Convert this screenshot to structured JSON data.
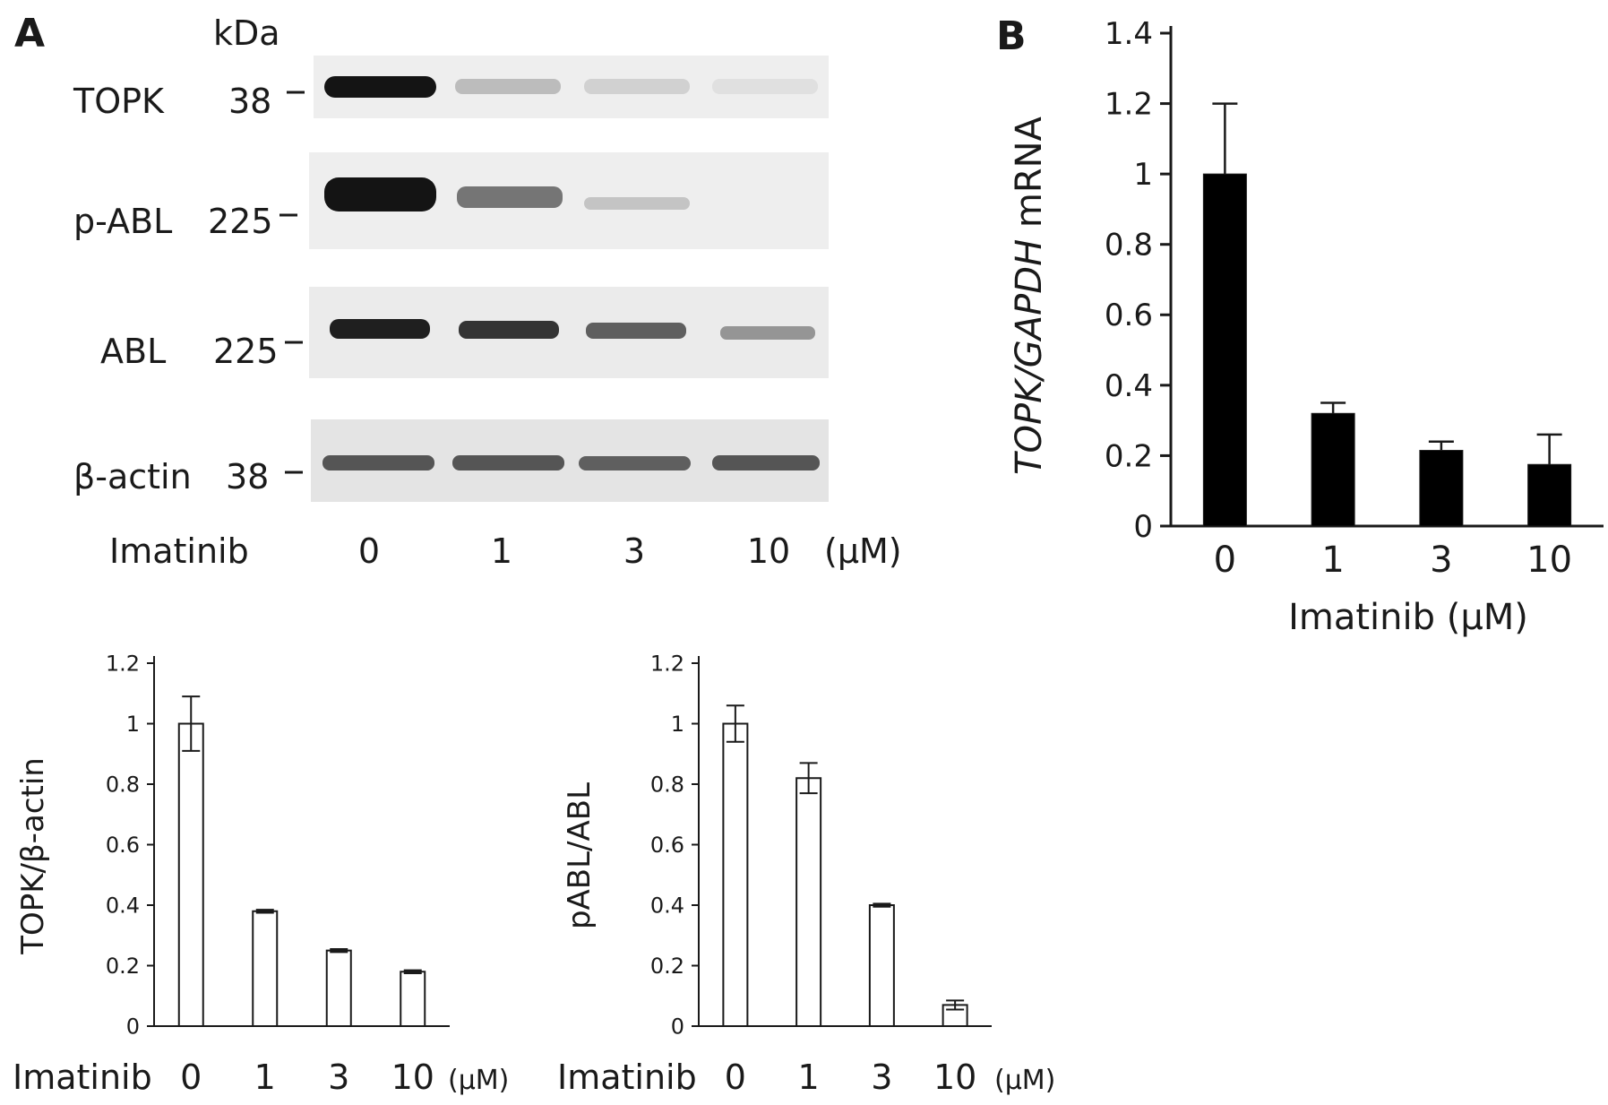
{
  "panel_a": {
    "label": "A",
    "kda_label": "kDa",
    "blot_rows": [
      {
        "protein": "TOPK",
        "kda": "38",
        "intensities": [
          1.0,
          0.22,
          0.12,
          0.05
        ]
      },
      {
        "protein": "p-ABL",
        "kda": "225",
        "intensities": [
          1.0,
          0.55,
          0.18,
          0.0
        ]
      },
      {
        "protein": "ABL",
        "kda": "225",
        "intensities": [
          0.95,
          0.85,
          0.65,
          0.4
        ]
      },
      {
        "protein": "β-actin",
        "kda": "38",
        "intensities": [
          0.7,
          0.7,
          0.65,
          0.7
        ]
      }
    ],
    "lane_header": "Imatinib",
    "lanes": [
      "0",
      "1",
      "3",
      "10"
    ],
    "unit": "(μM)"
  },
  "panel_b": {
    "label": "B"
  },
  "chart_data": [
    {
      "id": "topk-mrna",
      "type": "bar",
      "categories": [
        "0",
        "1",
        "3",
        "10"
      ],
      "values": [
        1.0,
        0.32,
        0.215,
        0.175
      ],
      "errors": [
        0.2,
        0.03,
        0.025,
        0.085
      ],
      "ylabel_italic": "TOPK/GAPDH",
      "ylabel_suffix": " mRNA",
      "xlabel": "Imatinib (μM)",
      "ylim": [
        0,
        1.4
      ],
      "yticks": [
        "0",
        "0.2",
        "0.4",
        "0.6",
        "0.8",
        "1",
        "1.2",
        "1.4"
      ],
      "bar_fill": "#000000",
      "grid": false
    },
    {
      "id": "topk-ratio",
      "type": "bar",
      "categories": [
        "0",
        "1",
        "3",
        "10"
      ],
      "values": [
        1.0,
        0.38,
        0.25,
        0.18
      ],
      "errors": [
        0.09,
        0.005,
        0.005,
        0.005
      ],
      "ylabel": "TOPK/β-actin",
      "xlabel_prefix": "Imatinib",
      "xlabel_unit": "(μM)",
      "ylim": [
        0,
        1.2
      ],
      "yticks": [
        "0",
        "0.2",
        "0.4",
        "0.6",
        "0.8",
        "1",
        "1.2"
      ],
      "bar_fill": "#ffffff",
      "grid": false
    },
    {
      "id": "pabl-ratio",
      "type": "bar",
      "categories": [
        "0",
        "1",
        "3",
        "10"
      ],
      "values": [
        1.0,
        0.82,
        0.4,
        0.07
      ],
      "errors": [
        0.06,
        0.05,
        0.005,
        0.015
      ],
      "ylabel": "pABL/ABL",
      "xlabel_prefix": "Imatinib",
      "xlabel_unit": "(μM)",
      "ylim": [
        0,
        1.2
      ],
      "yticks": [
        "0",
        "0.2",
        "0.4",
        "0.6",
        "0.8",
        "1",
        "1.2"
      ],
      "bar_fill": "#ffffff",
      "grid": false
    }
  ]
}
